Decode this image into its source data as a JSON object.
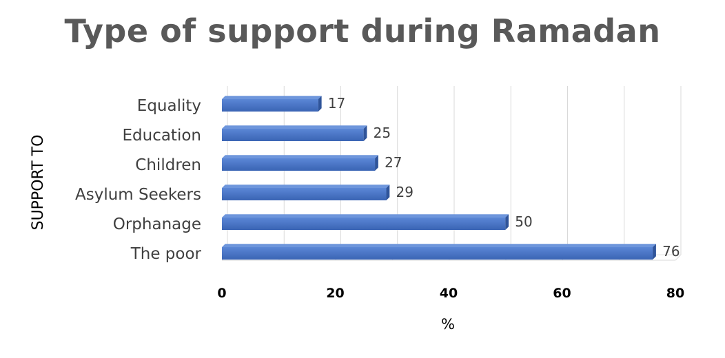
{
  "chart_data": {
    "type": "bar",
    "orientation": "horizontal",
    "title": "Type of support during Ramadan",
    "xlabel": "%",
    "ylabel": "SUPPORT TO",
    "categories": [
      "Equality",
      "Education",
      "Children",
      "Asylum Seekers",
      "Orphanage",
      "The poor"
    ],
    "values": [
      17,
      25,
      27,
      29,
      50,
      76
    ],
    "data_labels": [
      "17",
      "25",
      "27",
      "29",
      "50",
      "76"
    ],
    "xlim": [
      0,
      80
    ],
    "xticks": [
      0,
      20,
      40,
      60,
      80
    ],
    "xtick_labels": [
      "0",
      "20",
      "40",
      "60",
      "80"
    ],
    "grid": true,
    "legend": "none",
    "bar_color": "#4472c4"
  }
}
